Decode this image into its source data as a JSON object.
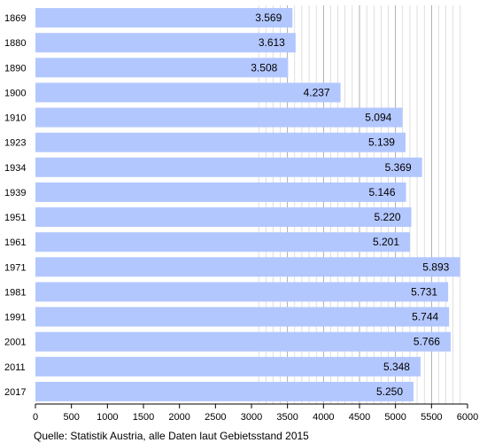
{
  "chart_data": {
    "type": "bar",
    "orientation": "horizontal",
    "categories": [
      "1869",
      "1880",
      "1890",
      "1900",
      "1910",
      "1923",
      "1934",
      "1939",
      "1951",
      "1961",
      "1971",
      "1981",
      "1991",
      "2001",
      "2011",
      "2017"
    ],
    "values": [
      3569,
      3613,
      3508,
      4237,
      5094,
      5139,
      5369,
      5146,
      5220,
      5201,
      5893,
      5731,
      5744,
      5766,
      5348,
      5250
    ],
    "value_labels": [
      "3.569",
      "3.613",
      "3.508",
      "4.237",
      "5.094",
      "5.139",
      "5.369",
      "5.146",
      "5.220",
      "5.201",
      "5.893",
      "5.731",
      "5.744",
      "5.766",
      "5.348",
      "5.250"
    ],
    "xlim": [
      0,
      6000
    ],
    "x_ticks": [
      0,
      500,
      1000,
      1500,
      2000,
      2500,
      3000,
      3500,
      4000,
      4500,
      5000,
      5500,
      6000
    ],
    "x_tick_labels": [
      "0",
      "500",
      "1000",
      "1500",
      "2000",
      "2500",
      "3000",
      "3500",
      "4000",
      "4500",
      "5000",
      "5500",
      "6000"
    ],
    "minor_grid_step": 100,
    "grid": true,
    "bar_color": "#b3c7ff",
    "grid_color": "#c8c8c8",
    "title": "",
    "xlabel": "",
    "ylabel": ""
  },
  "source_note": "Quelle: Statistik Austria, alle Daten laut Gebietsstand 2015"
}
